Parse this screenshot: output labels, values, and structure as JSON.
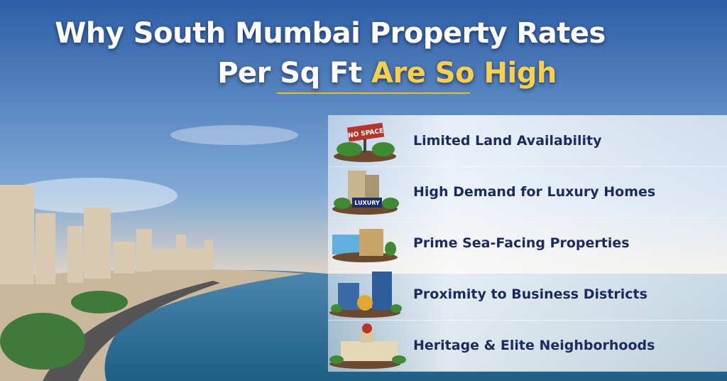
{
  "header": {
    "title_line1": "Why South Mumbai Property Rates",
    "title_line2": "Per Sq Ft",
    "title_highlight": "Are So High"
  },
  "items": [
    {
      "label": "Limited Land Availability",
      "icon_text": "NO SPACE"
    },
    {
      "label": "High Demand for Luxury Homes",
      "icon_text": "LUXURY"
    },
    {
      "label": "Prime Sea-Facing Properties"
    },
    {
      "label": "Proximity to Business Districts"
    },
    {
      "label": "Heritage & Elite Neighborhoods"
    }
  ]
}
